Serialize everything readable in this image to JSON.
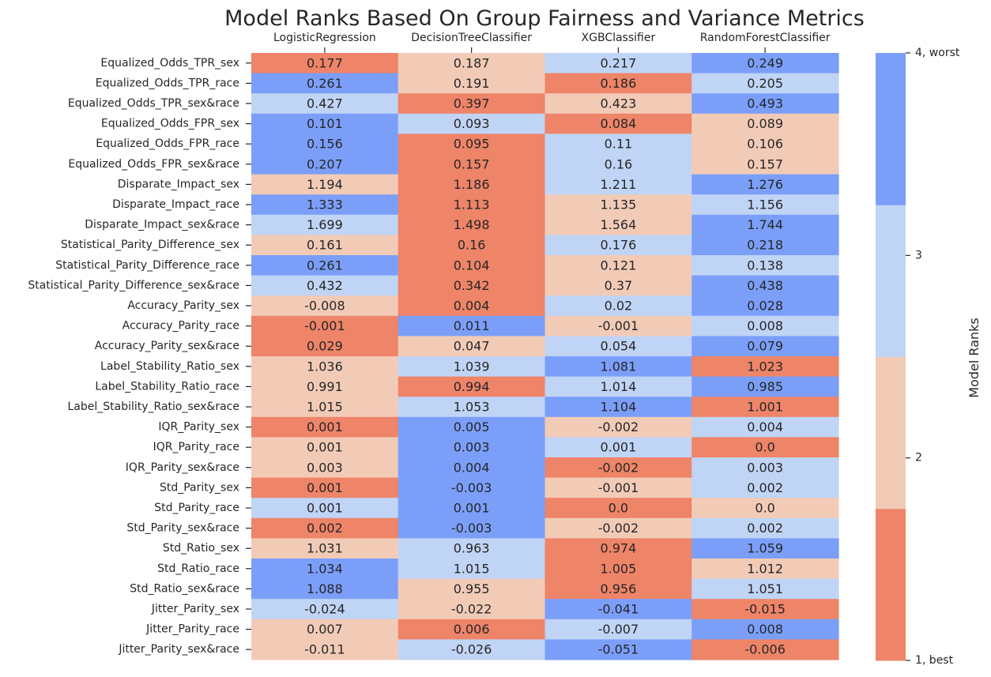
{
  "chart_data": {
    "type": "heatmap",
    "title": "Model Ranks Based On Group Fairness and Variance Metrics",
    "columns": [
      "LogisticRegression",
      "DecisionTreeClassifier",
      "XGBClassifier",
      "RandomForestClassifier"
    ],
    "rows": [
      "Equalized_Odds_TPR_sex",
      "Equalized_Odds_TPR_race",
      "Equalized_Odds_TPR_sex&race",
      "Equalized_Odds_FPR_sex",
      "Equalized_Odds_FPR_race",
      "Equalized_Odds_FPR_sex&race",
      "Disparate_Impact_sex",
      "Disparate_Impact_race",
      "Disparate_Impact_sex&race",
      "Statistical_Parity_Difference_sex",
      "Statistical_Parity_Difference_race",
      "Statistical_Parity_Difference_sex&race",
      "Accuracy_Parity_sex",
      "Accuracy_Parity_race",
      "Accuracy_Parity_sex&race",
      "Label_Stability_Ratio_sex",
      "Label_Stability_Ratio_race",
      "Label_Stability_Ratio_sex&race",
      "IQR_Parity_sex",
      "IQR_Parity_race",
      "IQR_Parity_sex&race",
      "Std_Parity_sex",
      "Std_Parity_race",
      "Std_Parity_sex&race",
      "Std_Ratio_sex",
      "Std_Ratio_race",
      "Std_Ratio_sex&race",
      "Jitter_Parity_sex",
      "Jitter_Parity_race",
      "Jitter_Parity_sex&race"
    ],
    "values": [
      [
        "0.177",
        "0.187",
        "0.217",
        "0.249"
      ],
      [
        "0.261",
        "0.191",
        "0.186",
        "0.205"
      ],
      [
        "0.427",
        "0.397",
        "0.423",
        "0.493"
      ],
      [
        "0.101",
        "0.093",
        "0.084",
        "0.089"
      ],
      [
        "0.156",
        "0.095",
        "0.11",
        "0.106"
      ],
      [
        "0.207",
        "0.157",
        "0.16",
        "0.157"
      ],
      [
        "1.194",
        "1.186",
        "1.211",
        "1.276"
      ],
      [
        "1.333",
        "1.113",
        "1.135",
        "1.156"
      ],
      [
        "1.699",
        "1.498",
        "1.564",
        "1.744"
      ],
      [
        "0.161",
        "0.16",
        "0.176",
        "0.218"
      ],
      [
        "0.261",
        "0.104",
        "0.121",
        "0.138"
      ],
      [
        "0.432",
        "0.342",
        "0.37",
        "0.438"
      ],
      [
        "-0.008",
        "0.004",
        "0.02",
        "0.028"
      ],
      [
        "-0.001",
        "0.011",
        "-0.001",
        "0.008"
      ],
      [
        "0.029",
        "0.047",
        "0.054",
        "0.079"
      ],
      [
        "1.036",
        "1.039",
        "1.081",
        "1.023"
      ],
      [
        "0.991",
        "0.994",
        "1.014",
        "0.985"
      ],
      [
        "1.015",
        "1.053",
        "1.104",
        "1.001"
      ],
      [
        "0.001",
        "0.005",
        "-0.002",
        "0.004"
      ],
      [
        "0.001",
        "0.003",
        "0.001",
        "0.0"
      ],
      [
        "0.003",
        "0.004",
        "-0.002",
        "0.003"
      ],
      [
        "0.001",
        "-0.003",
        "-0.001",
        "0.002"
      ],
      [
        "0.001",
        "0.001",
        "0.0",
        "0.0"
      ],
      [
        "0.002",
        "-0.003",
        "-0.002",
        "0.002"
      ],
      [
        "1.031",
        "0.963",
        "0.974",
        "1.059"
      ],
      [
        "1.034",
        "1.015",
        "1.005",
        "1.012"
      ],
      [
        "1.088",
        "0.955",
        "0.956",
        "1.051"
      ],
      [
        "-0.024",
        "-0.022",
        "-0.041",
        "-0.015"
      ],
      [
        "0.007",
        "0.006",
        "-0.007",
        "0.008"
      ],
      [
        "-0.011",
        "-0.026",
        "-0.051",
        "-0.006"
      ]
    ],
    "ranks": [
      [
        1,
        2,
        3,
        4
      ],
      [
        4,
        2,
        1,
        3
      ],
      [
        3,
        1,
        2,
        4
      ],
      [
        4,
        3,
        1,
        2
      ],
      [
        4,
        1,
        3,
        2
      ],
      [
        4,
        1,
        3,
        2
      ],
      [
        2,
        1,
        3,
        4
      ],
      [
        4,
        1,
        2,
        3
      ],
      [
        3,
        1,
        2,
        4
      ],
      [
        2,
        1,
        3,
        4
      ],
      [
        4,
        1,
        2,
        3
      ],
      [
        3,
        1,
        2,
        4
      ],
      [
        2,
        1,
        3,
        4
      ],
      [
        1,
        4,
        2,
        3
      ],
      [
        1,
        2,
        3,
        4
      ],
      [
        2,
        3,
        4,
        1
      ],
      [
        2,
        1,
        3,
        4
      ],
      [
        2,
        3,
        4,
        1
      ],
      [
        1,
        4,
        2,
        3
      ],
      [
        2,
        4,
        3,
        1
      ],
      [
        2,
        4,
        1,
        3
      ],
      [
        1,
        4,
        2,
        3
      ],
      [
        3,
        4,
        1,
        2
      ],
      [
        1,
        4,
        2,
        3
      ],
      [
        2,
        3,
        1,
        4
      ],
      [
        4,
        3,
        1,
        2
      ],
      [
        4,
        2,
        1,
        3
      ],
      [
        3,
        2,
        4,
        1
      ],
      [
        2,
        1,
        3,
        4
      ],
      [
        2,
        3,
        4,
        1
      ]
    ],
    "colorbar": {
      "title": "Model Ranks",
      "range": [
        1,
        4
      ],
      "ticks": [
        {
          "value": 4,
          "label": "4, worst"
        },
        {
          "value": 3,
          "label": "3"
        },
        {
          "value": 2,
          "label": "2"
        },
        {
          "value": 1,
          "label": "1, best"
        }
      ],
      "colors": {
        "1": "#ee8468",
        "2": "#f2cbb7",
        "3": "#c0d4f5",
        "4": "#7b9ff9"
      }
    }
  }
}
